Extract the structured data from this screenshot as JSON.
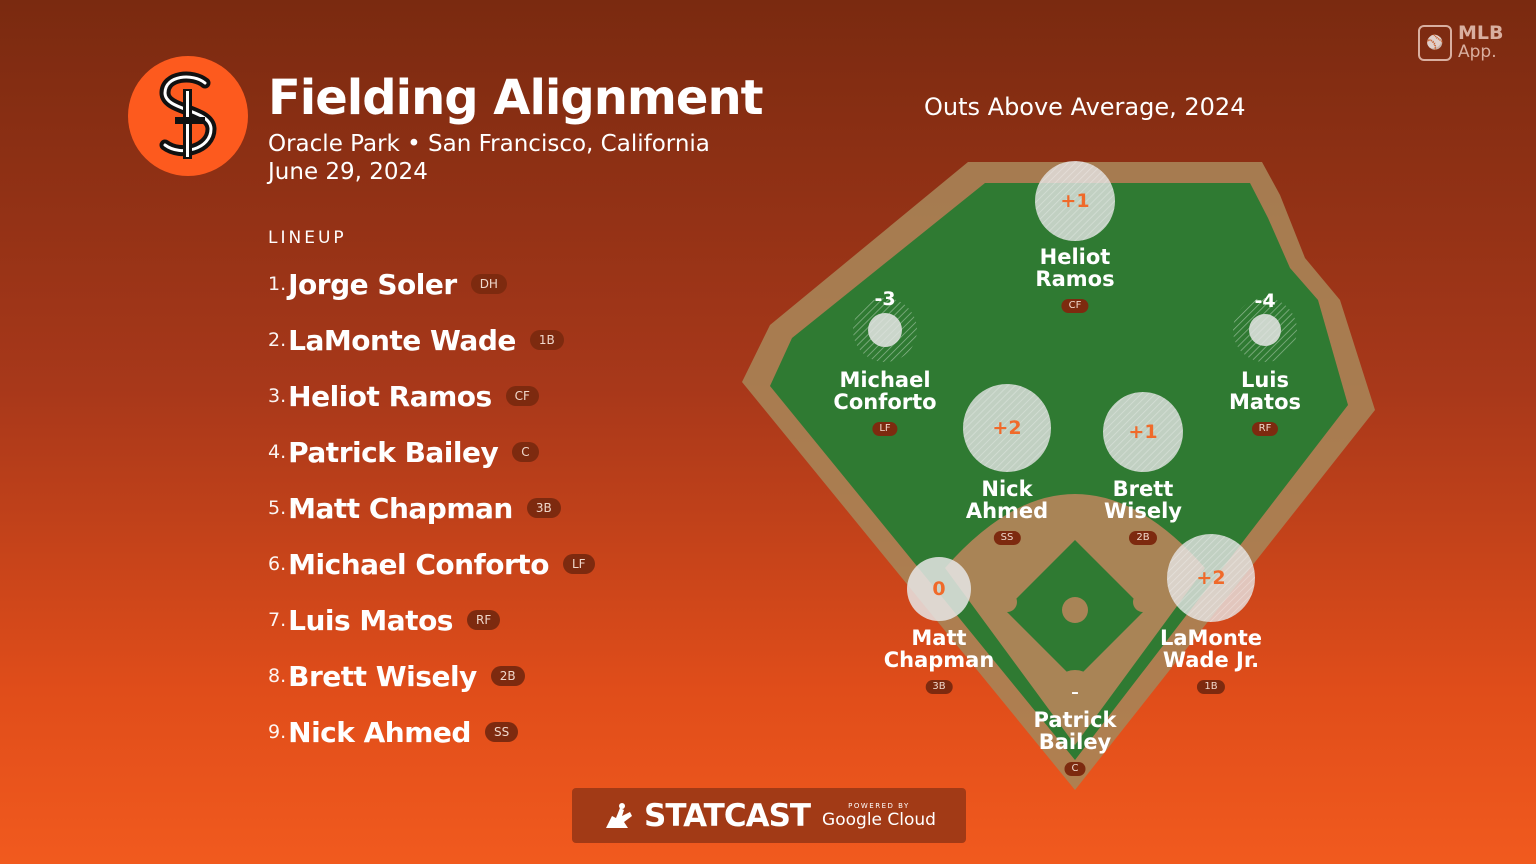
{
  "header": {
    "title": "Fielding Alignment",
    "venue": "Oracle Park • San Francisco, California",
    "date": "June 29, 2024"
  },
  "team_logo": {
    "icon": "sf-giants-logo",
    "color": "#fd5a1e"
  },
  "oaa_title": "Outs Above Average, 2024",
  "badge": {
    "top": "MLB",
    "bottom": "App."
  },
  "lineup": {
    "heading": "LINEUP",
    "items": [
      {
        "num": "1.",
        "name": "Jorge Soler",
        "pos": "DH"
      },
      {
        "num": "2.",
        "name": "LaMonte Wade",
        "pos": "1B"
      },
      {
        "num": "3.",
        "name": "Heliot Ramos",
        "pos": "CF"
      },
      {
        "num": "4.",
        "name": "Patrick Bailey",
        "pos": "C"
      },
      {
        "num": "5.",
        "name": "Matt Chapman",
        "pos": "3B"
      },
      {
        "num": "6.",
        "name": "Michael Conforto",
        "pos": "LF"
      },
      {
        "num": "7.",
        "name": "Luis Matos",
        "pos": "RF"
      },
      {
        "num": "8.",
        "name": "Brett Wisely",
        "pos": "2B"
      },
      {
        "num": "9.",
        "name": "Nick Ahmed",
        "pos": "SS"
      }
    ]
  },
  "fielders": {
    "cf": {
      "line1": "Heliot",
      "line2": "Ramos",
      "pos": "CF",
      "oaa": "+1"
    },
    "lf": {
      "line1": "Michael",
      "line2": "Conforto",
      "pos": "LF",
      "oaa": "-3"
    },
    "rf": {
      "line1": "Luis",
      "line2": "Matos",
      "pos": "RF",
      "oaa": "-4"
    },
    "ss": {
      "line1": "Nick",
      "line2": "Ahmed",
      "pos": "SS",
      "oaa": "+2"
    },
    "2b": {
      "line1": "Brett",
      "line2": "Wisely",
      "pos": "2B",
      "oaa": "+1"
    },
    "3b": {
      "line1": "Matt",
      "line2": "Chapman",
      "pos": "3B",
      "oaa": "0"
    },
    "1b": {
      "line1": "LaMonte",
      "line2": "Wade Jr.",
      "pos": "1B",
      "oaa": "+2"
    },
    "c": {
      "line1": "Patrick",
      "line2": "Bailey",
      "pos": "C",
      "oaa": "–"
    }
  },
  "footer": {
    "brand": "STATCAST",
    "powered_by": "POWERED BY",
    "partner": "Google Cloud"
  },
  "colors": {
    "grass": "#2f7a32",
    "dirt": "#a98456",
    "pill": "#7d2a0f"
  }
}
